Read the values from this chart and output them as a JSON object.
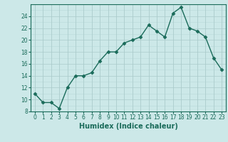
{
  "x": [
    0,
    1,
    2,
    3,
    4,
    5,
    6,
    7,
    8,
    9,
    10,
    11,
    12,
    13,
    14,
    15,
    16,
    17,
    18,
    19,
    20,
    21,
    22,
    23
  ],
  "y": [
    11,
    9.5,
    9.5,
    8.5,
    12,
    14,
    14,
    14.5,
    16.5,
    18,
    18,
    19.5,
    20,
    20.5,
    22.5,
    21.5,
    20.5,
    24.5,
    25.5,
    22,
    21.5,
    20.5,
    17,
    15
  ],
  "xlabel": "Humidex (Indice chaleur)",
  "ylim": [
    8,
    26
  ],
  "xlim_min": -0.5,
  "xlim_max": 23.5,
  "yticks": [
    8,
    10,
    12,
    14,
    16,
    18,
    20,
    22,
    24
  ],
  "xticks": [
    0,
    1,
    2,
    3,
    4,
    5,
    6,
    7,
    8,
    9,
    10,
    11,
    12,
    13,
    14,
    15,
    16,
    17,
    18,
    19,
    20,
    21,
    22,
    23
  ],
  "line_color": "#1a6b5a",
  "bg_color": "#cce8e8",
  "grid_minor_color": "#b8d8d8",
  "grid_major_color": "#aacaca",
  "tick_fontsize": 5.5,
  "xlabel_fontsize": 7.0,
  "linewidth": 1.0,
  "markersize": 2.5
}
